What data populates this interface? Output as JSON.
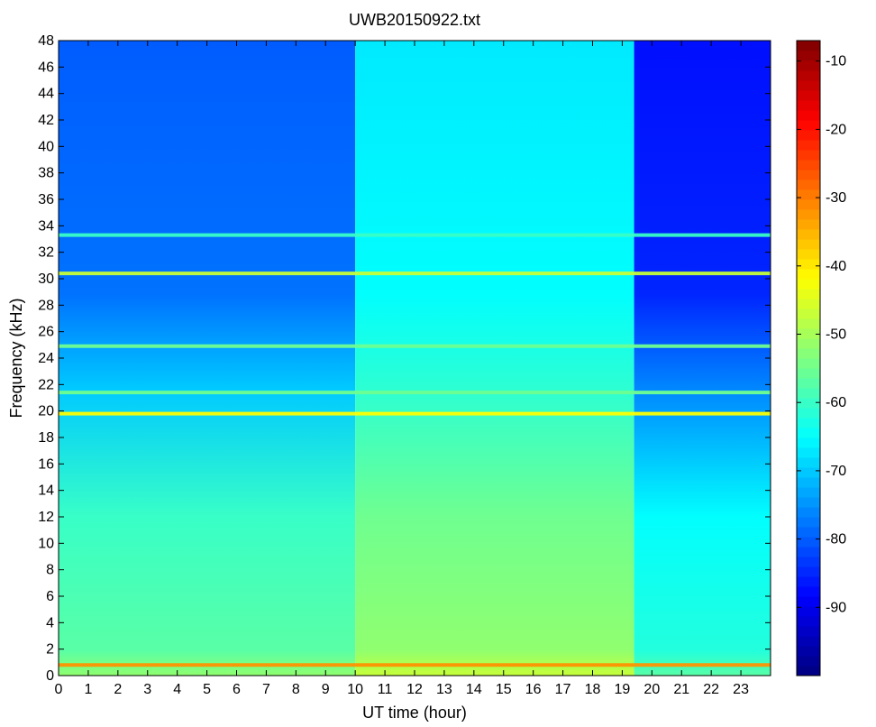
{
  "chart_data": {
    "type": "heatmap",
    "title": "UWB20150922.txt",
    "xlabel": "UT time (hour)",
    "ylabel": "Frequency (kHz)",
    "xlim": [
      0,
      24
    ],
    "ylim": [
      0,
      48
    ],
    "x_ticks": [
      "0",
      "1",
      "2",
      "3",
      "4",
      "5",
      "6",
      "7",
      "8",
      "9",
      "10",
      "11",
      "12",
      "13",
      "14",
      "15",
      "16",
      "17",
      "18",
      "19",
      "20",
      "21",
      "22",
      "23"
    ],
    "y_ticks": [
      "0",
      "2",
      "4",
      "6",
      "8",
      "10",
      "12",
      "14",
      "16",
      "18",
      "20",
      "22",
      "24",
      "26",
      "28",
      "30",
      "32",
      "34",
      "36",
      "38",
      "40",
      "42",
      "44",
      "46",
      "48"
    ],
    "colormap": "jet",
    "colorbar": {
      "range": [
        -100,
        -7
      ],
      "ticks": [
        "-10",
        "-20",
        "-30",
        "-40",
        "-50",
        "-60",
        "-70",
        "-80",
        "-90"
      ]
    },
    "time_segments": [
      {
        "start": 0,
        "end": 10,
        "high_freq_level": -80,
        "low_freq_level": -60
      },
      {
        "start": 10,
        "end": 19.4,
        "high_freq_level": -67,
        "low_freq_level": -55
      },
      {
        "start": 19.4,
        "end": 24,
        "high_freq_level": -87,
        "low_freq_level": -65
      }
    ],
    "persistent_bands_khz": [
      {
        "freq": 0.8,
        "level": -32
      },
      {
        "freq": 19.8,
        "level": -42
      },
      {
        "freq": 21.4,
        "level": -55
      },
      {
        "freq": 24.9,
        "level": -55
      },
      {
        "freq": 30.4,
        "level": -47
      },
      {
        "freq": 33.3,
        "level": -60
      }
    ]
  }
}
